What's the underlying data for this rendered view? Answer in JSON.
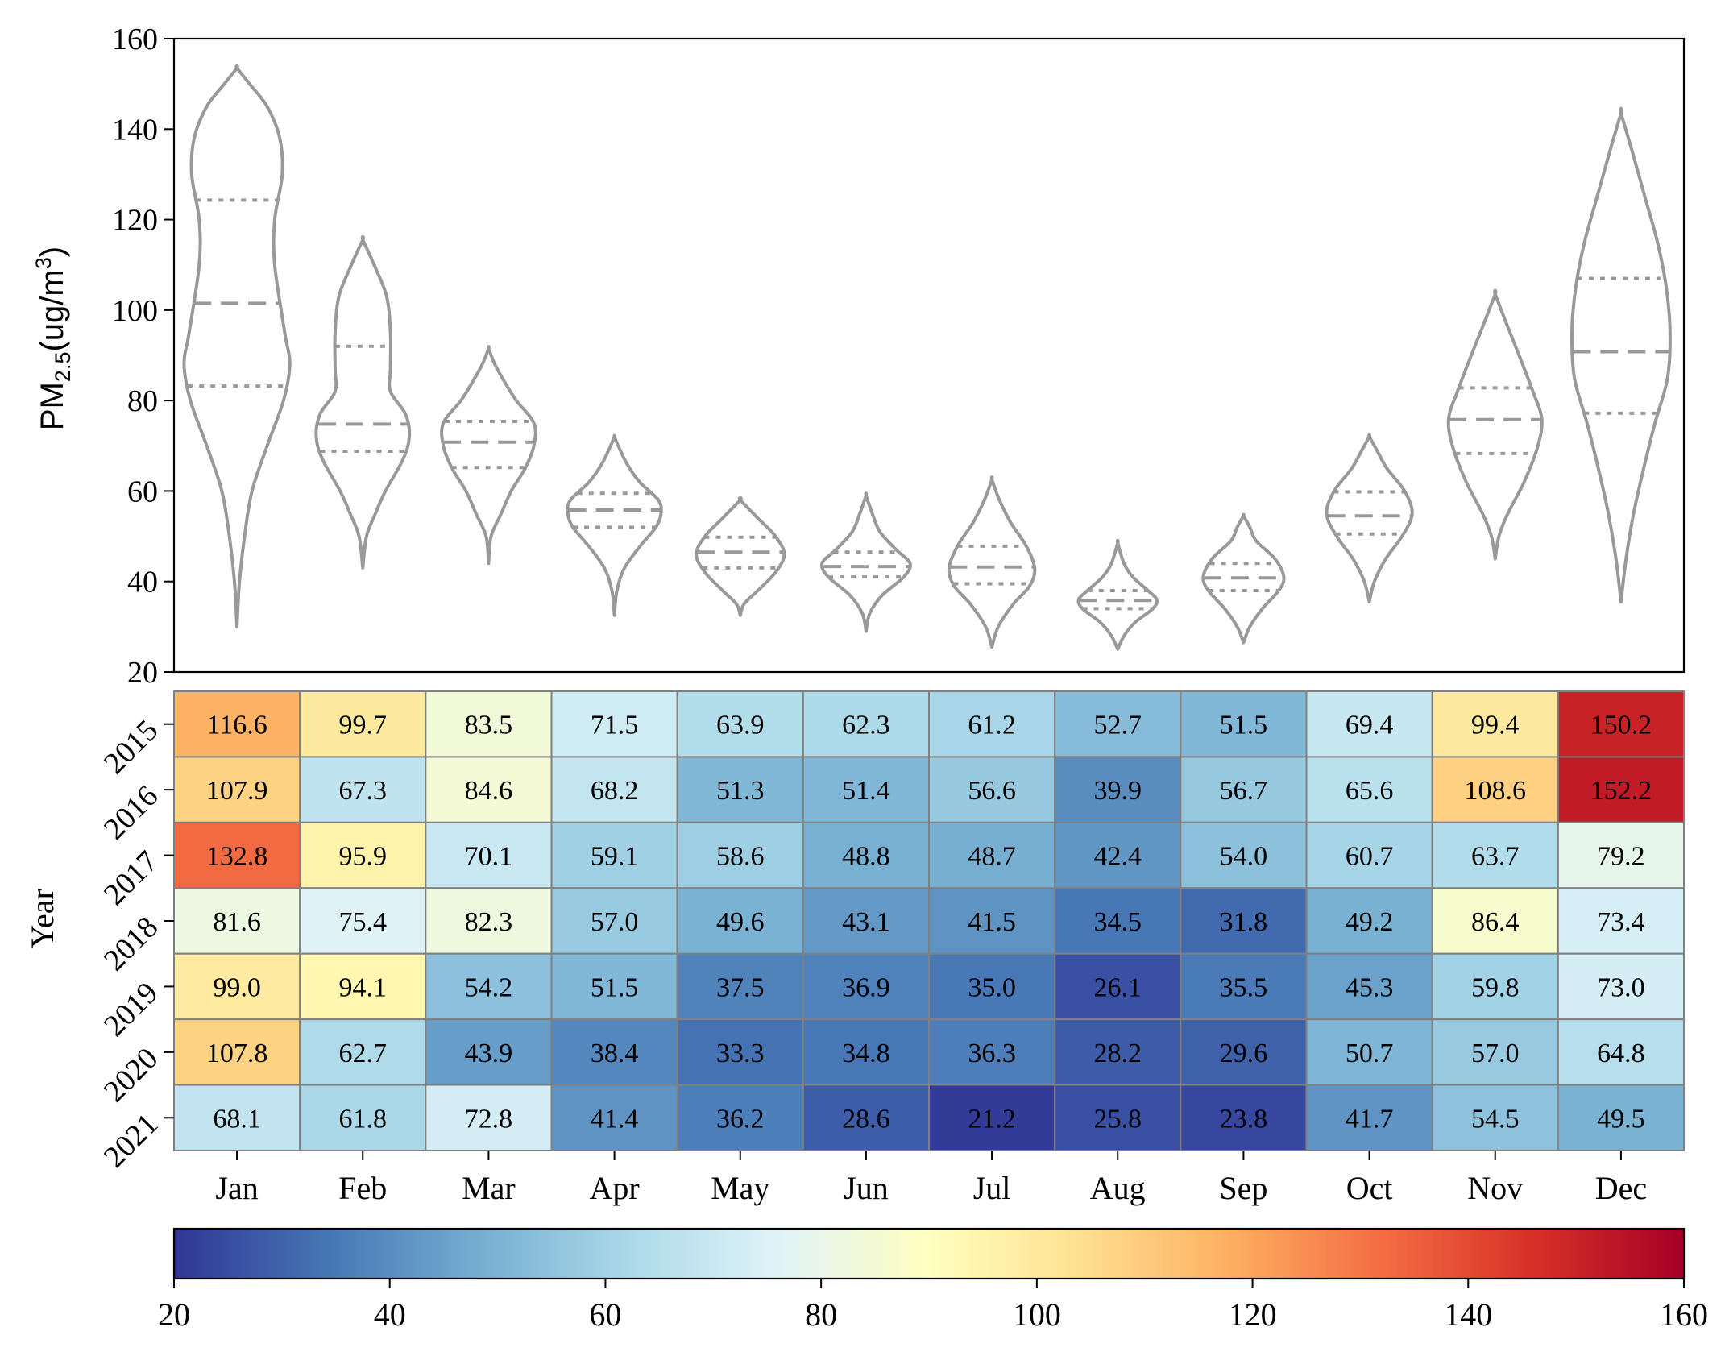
{
  "chart_data": [
    {
      "type": "violin",
      "ylabel_main": "PM",
      "ylabel_sub": "2.5",
      "ylabel_unit": "(ug/m",
      "ylabel_sup": "3",
      "ylabel_close": ")",
      "ylim": [
        20,
        160
      ],
      "yticks": [
        "20",
        "40",
        "60",
        "80",
        "100",
        "120",
        "140",
        "160"
      ],
      "yticks_values": [
        20,
        40,
        60,
        80,
        100,
        120,
        140,
        160
      ],
      "categories": [
        "Jan",
        "Feb",
        "Mar",
        "Apr",
        "May",
        "Jun",
        "Jul",
        "Aug",
        "Sep",
        "Oct",
        "Nov",
        "Dec"
      ],
      "line_color": "#999999",
      "violins": [
        {
          "month": "Jan",
          "min": 30,
          "max": 153.5,
          "q1": 83.2,
          "median": 101.5,
          "q3": 124.3,
          "shape": [
            [
              30,
              0
            ],
            [
              40,
              0.02
            ],
            [
              50,
              0.06
            ],
            [
              60,
              0.12
            ],
            [
              70,
              0.24
            ],
            [
              80,
              0.37
            ],
            [
              88,
              0.42
            ],
            [
              95,
              0.38
            ],
            [
              110,
              0.3
            ],
            [
              120,
              0.3
            ],
            [
              130,
              0.36
            ],
            [
              138,
              0.34
            ],
            [
              145,
              0.24
            ],
            [
              150,
              0.1
            ],
            [
              153.5,
              0
            ]
          ]
        },
        {
          "month": "Feb",
          "min": 43,
          "max": 115.5,
          "q1": 68.8,
          "median": 74.8,
          "q3": 92,
          "shape": [
            [
              43,
              0
            ],
            [
              50,
              0.03
            ],
            [
              55,
              0.1
            ],
            [
              60,
              0.18
            ],
            [
              67,
              0.32
            ],
            [
              72,
              0.37
            ],
            [
              77,
              0.34
            ],
            [
              82,
              0.22
            ],
            [
              87,
              0.22
            ],
            [
              95,
              0.22
            ],
            [
              103,
              0.19
            ],
            [
              110,
              0.09
            ],
            [
              115.5,
              0
            ]
          ]
        },
        {
          "month": "Mar",
          "min": 44,
          "max": 91.5,
          "q1": 65.2,
          "median": 70.8,
          "q3": 75.4,
          "shape": [
            [
              44,
              0
            ],
            [
              50,
              0.02
            ],
            [
              55,
              0.1
            ],
            [
              60,
              0.18
            ],
            [
              65,
              0.29
            ],
            [
              70,
              0.36
            ],
            [
              75,
              0.36
            ],
            [
              80,
              0.22
            ],
            [
              84,
              0.13
            ],
            [
              88,
              0.05
            ],
            [
              91.5,
              0
            ]
          ]
        },
        {
          "month": "Apr",
          "min": 32.5,
          "max": 72,
          "q1": 52,
          "median": 55.8,
          "q3": 59.5,
          "shape": [
            [
              32.5,
              0
            ],
            [
              38,
              0.02
            ],
            [
              43,
              0.08
            ],
            [
              48,
              0.21
            ],
            [
              52,
              0.33
            ],
            [
              55,
              0.37
            ],
            [
              58,
              0.35
            ],
            [
              62,
              0.2
            ],
            [
              66,
              0.1
            ],
            [
              70,
              0.03
            ],
            [
              72,
              0
            ]
          ]
        },
        {
          "month": "May",
          "min": 32.5,
          "max": 58,
          "q1": 43,
          "median": 46.5,
          "q3": 49.8,
          "shape": [
            [
              32.5,
              0
            ],
            [
              35,
              0.03
            ],
            [
              38,
              0.14
            ],
            [
              42,
              0.28
            ],
            [
              46,
              0.35
            ],
            [
              50,
              0.28
            ],
            [
              54,
              0.14
            ],
            [
              58,
              0
            ]
          ]
        },
        {
          "month": "Jun",
          "min": 29,
          "max": 59,
          "q1": 41,
          "median": 43.3,
          "q3": 46.5,
          "shape": [
            [
              29,
              0
            ],
            [
              33,
              0.03
            ],
            [
              37,
              0.13
            ],
            [
              41,
              0.3
            ],
            [
              44,
              0.35
            ],
            [
              47,
              0.24
            ],
            [
              51,
              0.11
            ],
            [
              55,
              0.05
            ],
            [
              59,
              0
            ]
          ]
        },
        {
          "month": "Jul",
          "min": 25.5,
          "max": 62.5,
          "q1": 39.5,
          "median": 43.2,
          "q3": 47.8,
          "shape": [
            [
              25.5,
              0
            ],
            [
              30,
              0.05
            ],
            [
              35,
              0.17
            ],
            [
              39,
              0.3
            ],
            [
              43,
              0.34
            ],
            [
              48,
              0.27
            ],
            [
              53,
              0.15
            ],
            [
              58,
              0.06
            ],
            [
              62.5,
              0
            ]
          ]
        },
        {
          "month": "Aug",
          "min": 25,
          "max": 48.5,
          "q1": 34,
          "median": 35.8,
          "q3": 38,
          "shape": [
            [
              25,
              0
            ],
            [
              28,
              0.05
            ],
            [
              31,
              0.14
            ],
            [
              34,
              0.28
            ],
            [
              36,
              0.31
            ],
            [
              38,
              0.24
            ],
            [
              41,
              0.12
            ],
            [
              44,
              0.05
            ],
            [
              48.5,
              0
            ]
          ]
        },
        {
          "month": "Sep",
          "min": 26.5,
          "max": 54.5,
          "q1": 38,
          "median": 40.8,
          "q3": 44,
          "shape": [
            [
              26.5,
              0
            ],
            [
              30,
              0.05
            ],
            [
              34,
              0.15
            ],
            [
              38,
              0.28
            ],
            [
              41,
              0.32
            ],
            [
              45,
              0.25
            ],
            [
              49,
              0.1
            ],
            [
              52,
              0.05
            ],
            [
              54.5,
              0
            ]
          ]
        },
        {
          "month": "Oct",
          "min": 35.5,
          "max": 72,
          "q1": 50.5,
          "median": 54.5,
          "q3": 59.8,
          "shape": [
            [
              35.5,
              0
            ],
            [
              40,
              0.04
            ],
            [
              45,
              0.13
            ],
            [
              50,
              0.26
            ],
            [
              55,
              0.34
            ],
            [
              60,
              0.28
            ],
            [
              65,
              0.14
            ],
            [
              69,
              0.06
            ],
            [
              72,
              0
            ]
          ]
        },
        {
          "month": "Nov",
          "min": 45,
          "max": 103.5,
          "q1": 68.3,
          "median": 75.8,
          "q3": 82.8,
          "shape": [
            [
              45,
              0
            ],
            [
              50,
              0.03
            ],
            [
              55,
              0.1
            ],
            [
              62,
              0.23
            ],
            [
              70,
              0.34
            ],
            [
              76,
              0.37
            ],
            [
              82,
              0.3
            ],
            [
              90,
              0.19
            ],
            [
              97,
              0.09
            ],
            [
              103.5,
              0
            ]
          ]
        },
        {
          "month": "Dec",
          "min": 35.5,
          "max": 143.5,
          "q1": 77.2,
          "median": 90.8,
          "q3": 107,
          "shape": [
            [
              35.5,
              0
            ],
            [
              45,
              0.04
            ],
            [
              55,
              0.1
            ],
            [
              65,
              0.18
            ],
            [
              75,
              0.27
            ],
            [
              85,
              0.37
            ],
            [
              95,
              0.39
            ],
            [
              105,
              0.36
            ],
            [
              115,
              0.29
            ],
            [
              125,
              0.19
            ],
            [
              135,
              0.09
            ],
            [
              143.5,
              0
            ]
          ]
        }
      ]
    },
    {
      "type": "heatmap",
      "ylabel": "Year",
      "x": [
        "Jan",
        "Feb",
        "Mar",
        "Apr",
        "May",
        "Jun",
        "Jul",
        "Aug",
        "Sep",
        "Oct",
        "Nov",
        "Dec"
      ],
      "y": [
        "2015",
        "2016",
        "2017",
        "2018",
        "2019",
        "2020",
        "2021"
      ],
      "values": [
        [
          116.6,
          99.7,
          83.5,
          71.5,
          63.9,
          62.3,
          61.2,
          52.7,
          51.5,
          69.4,
          99.4,
          150.2
        ],
        [
          107.9,
          67.3,
          84.6,
          68.2,
          51.3,
          51.4,
          56.6,
          39.9,
          56.7,
          65.6,
          108.6,
          152.2
        ],
        [
          132.8,
          95.9,
          70.1,
          59.1,
          58.6,
          48.8,
          48.7,
          42.4,
          54.0,
          60.7,
          63.7,
          79.2
        ],
        [
          81.6,
          75.4,
          82.3,
          57.0,
          49.6,
          43.1,
          41.5,
          34.5,
          31.8,
          49.2,
          86.4,
          73.4
        ],
        [
          99.0,
          94.1,
          54.2,
          51.5,
          37.5,
          36.9,
          35.0,
          26.1,
          35.5,
          45.3,
          59.8,
          73.0
        ],
        [
          107.8,
          62.7,
          43.9,
          38.4,
          33.3,
          34.8,
          36.3,
          28.2,
          29.6,
          50.7,
          57.0,
          64.8
        ],
        [
          68.1,
          61.8,
          72.8,
          41.4,
          36.2,
          28.6,
          21.2,
          25.8,
          23.8,
          41.7,
          54.5,
          49.5
        ]
      ],
      "labels": [
        [
          "116.6",
          "99.7",
          "83.5",
          "71.5",
          "63.9",
          "62.3",
          "61.2",
          "52.7",
          "51.5",
          "69.4",
          "99.4",
          "150.2"
        ],
        [
          "107.9",
          "67.3",
          "84.6",
          "68.2",
          "51.3",
          "51.4",
          "56.6",
          "39.9",
          "56.7",
          "65.6",
          "108.6",
          "152.2"
        ],
        [
          "132.8",
          "95.9",
          "70.1",
          "59.1",
          "58.6",
          "48.8",
          "48.7",
          "42.4",
          "54.0",
          "60.7",
          "63.7",
          "79.2"
        ],
        [
          "81.6",
          "75.4",
          "82.3",
          "57.0",
          "49.6",
          "43.1",
          "41.5",
          "34.5",
          "31.8",
          "49.2",
          "86.4",
          "73.4"
        ],
        [
          "99.0",
          "94.1",
          "54.2",
          "51.5",
          "37.5",
          "36.9",
          "35.0",
          "26.1",
          "35.5",
          "45.3",
          "59.8",
          "73.0"
        ],
        [
          "107.8",
          "62.7",
          "43.9",
          "38.4",
          "33.3",
          "34.8",
          "36.3",
          "28.2",
          "29.6",
          "50.7",
          "57.0",
          "64.8"
        ],
        [
          "68.1",
          "61.8",
          "72.8",
          "41.4",
          "36.2",
          "28.6",
          "21.2",
          "25.8",
          "23.8",
          "41.7",
          "54.5",
          "49.5"
        ]
      ],
      "colormap": "RdYlBu_r",
      "colormap_stops": [
        "#313695",
        "#4575b4",
        "#74add1",
        "#abd9e9",
        "#e0f3f8",
        "#ffffbf",
        "#fee090",
        "#fdae61",
        "#f46d43",
        "#d73027",
        "#a50026"
      ],
      "cell_border": "#808080",
      "vmin": 20,
      "vmax": 160
    },
    {
      "type": "colorbar",
      "orientation": "horizontal",
      "range": [
        20,
        160
      ],
      "ticks": [
        "20",
        "40",
        "60",
        "80",
        "100",
        "120",
        "140",
        "160"
      ],
      "ticks_values": [
        20,
        40,
        60,
        80,
        100,
        120,
        140,
        160
      ]
    }
  ]
}
